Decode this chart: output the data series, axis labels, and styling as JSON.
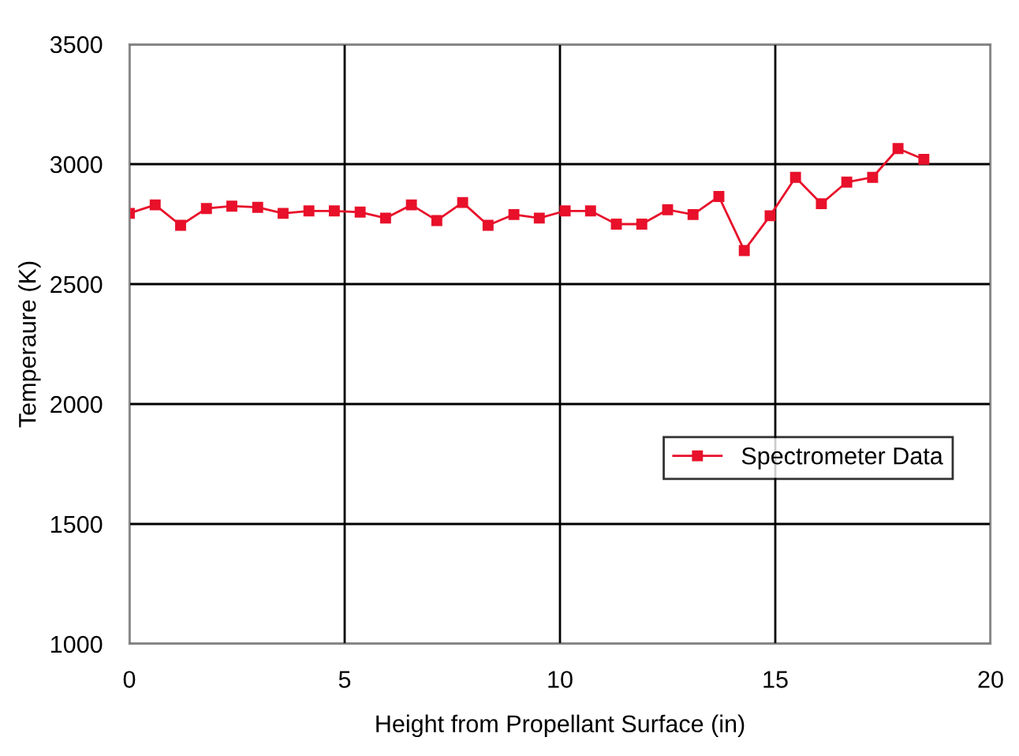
{
  "chart_data": {
    "type": "line",
    "xlabel": "Height from Propellant Surface (in)",
    "ylabel": "Temperaure (K)",
    "xlim": [
      0,
      20
    ],
    "xticks": [
      0,
      5,
      10,
      15,
      20
    ],
    "ylim": [
      1000,
      3500
    ],
    "yticks": [
      1000,
      1500,
      2000,
      2500,
      3000,
      3500
    ],
    "grid": true,
    "legend": "right",
    "marker": "square",
    "line_style": "solid",
    "series": [
      {
        "name": "Spectrometer Data",
        "color": "#e8102a",
        "x": [
          0,
          0.6,
          1.19,
          1.79,
          2.38,
          2.98,
          3.57,
          4.17,
          4.76,
          5.36,
          5.95,
          6.55,
          7.14,
          7.74,
          8.33,
          8.93,
          9.52,
          10.12,
          10.71,
          11.31,
          11.9,
          12.5,
          13.09,
          13.69,
          14.28,
          14.88,
          15.47,
          16.07,
          16.66,
          17.26,
          17.85,
          18.45
        ],
        "values": [
          2795,
          2830,
          2745,
          2815,
          2825,
          2820,
          2795,
          2805,
          2805,
          2800,
          2775,
          2830,
          2765,
          2840,
          2745,
          2790,
          2775,
          2805,
          2805,
          2750,
          2750,
          2810,
          2790,
          2865,
          2640,
          2785,
          2945,
          2835,
          2925,
          2945,
          3065,
          3020
        ]
      }
    ]
  }
}
